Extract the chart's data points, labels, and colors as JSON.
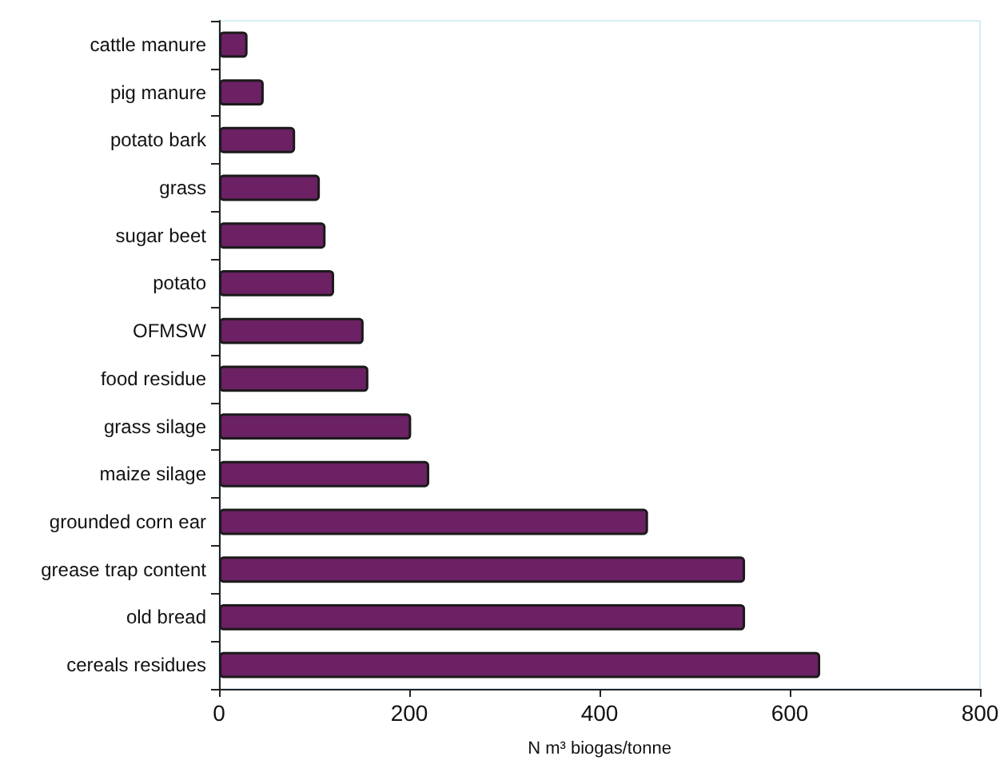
{
  "chart_data": {
    "type": "bar",
    "orientation": "horizontal",
    "xlabel": "N m³ biogas/tonne",
    "categories": [
      "cattle manure",
      "pig manure",
      "potato bark",
      "grass",
      "sugar beet",
      "potato",
      "OFMSW",
      "food residue",
      "grass silage",
      "maize silage",
      "grounded corn ear",
      "grease trap content",
      "old bread",
      "cereals residues"
    ],
    "values": [
      30,
      47,
      80,
      106,
      112,
      121,
      152,
      157,
      202,
      221,
      451,
      553,
      553,
      632
    ],
    "color": "#6b2163",
    "xlim": [
      0,
      800
    ],
    "xticks": [
      0,
      200,
      400,
      600,
      800
    ],
    "grid": false
  }
}
